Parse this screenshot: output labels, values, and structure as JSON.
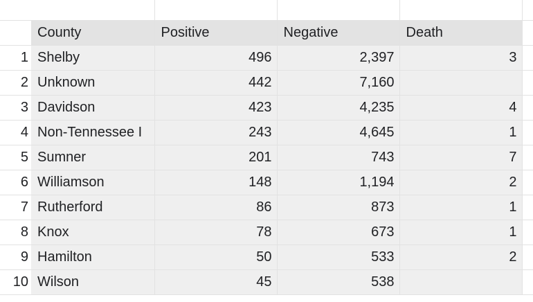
{
  "sheet": {
    "columns": [
      "County",
      "Positive",
      "Negative",
      "Death"
    ],
    "rows": [
      {
        "num": "1",
        "county": "Shelby",
        "positive": "496",
        "negative": "2,397",
        "death": "3"
      },
      {
        "num": "2",
        "county": "Unknown",
        "positive": "442",
        "negative": "7,160",
        "death": ""
      },
      {
        "num": "3",
        "county": "Davidson",
        "positive": "423",
        "negative": "4,235",
        "death": "4"
      },
      {
        "num": "4",
        "county": "Non-Tennessee I",
        "positive": "243",
        "negative": "4,645",
        "death": "1"
      },
      {
        "num": "5",
        "county": "Sumner",
        "positive": "201",
        "negative": "743",
        "death": "7"
      },
      {
        "num": "6",
        "county": "Williamson",
        "positive": "148",
        "negative": "1,194",
        "death": "2"
      },
      {
        "num": "7",
        "county": "Rutherford",
        "positive": "86",
        "negative": "873",
        "death": "1"
      },
      {
        "num": "8",
        "county": "Knox",
        "positive": "78",
        "negative": "673",
        "death": "1"
      },
      {
        "num": "9",
        "county": "Hamilton",
        "positive": "50",
        "negative": "533",
        "death": "2"
      },
      {
        "num": "10",
        "county": "Wilson",
        "positive": "45",
        "negative": "538",
        "death": ""
      }
    ]
  }
}
